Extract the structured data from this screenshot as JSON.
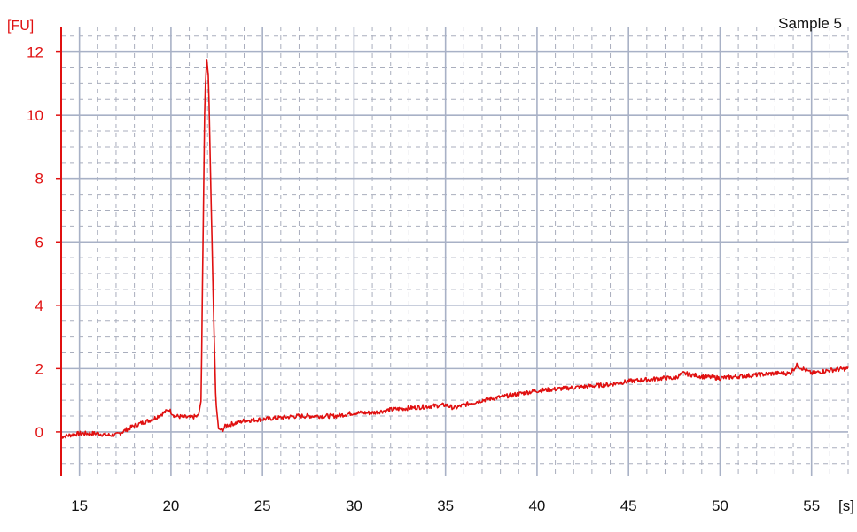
{
  "sample_label": "Sample 5",
  "colors": {
    "trace": "#e01010",
    "axis": "#e01010",
    "grid_major": "#a8b1c6",
    "grid_minor": "#a9aebd",
    "plot_bg": "#ffffff"
  },
  "chart_data": {
    "type": "line",
    "title": "Sample 5",
    "xlabel": "[s]",
    "ylabel": "[FU]",
    "xlim": [
      14,
      57
    ],
    "ylim": [
      -1.4,
      12.8
    ],
    "x_ticks": [
      15,
      20,
      25,
      30,
      35,
      40,
      45,
      50,
      55
    ],
    "x_tick_labels": [
      "15",
      "20",
      "25",
      "30",
      "35",
      "40",
      "45",
      "50",
      "55"
    ],
    "y_ticks": [
      0,
      2,
      4,
      6,
      8,
      10,
      12
    ],
    "y_tick_labels": [
      "0",
      "2",
      "4",
      "6",
      "8",
      "10",
      "12"
    ],
    "grid": true,
    "series": [
      {
        "color": "#e01010",
        "x": [
          14.0,
          15.0,
          16.0,
          16.5,
          17.0,
          18.0,
          19.0,
          19.9,
          20.2,
          21.0,
          21.5,
          21.65,
          21.75,
          21.85,
          21.95,
          22.05,
          22.15,
          22.3,
          22.45,
          22.6,
          22.8,
          23.0,
          24.0,
          25.0,
          26.0,
          27.0,
          28.0,
          29.0,
          30.0,
          31.0,
          32.0,
          33.0,
          34.0,
          35.0,
          35.5,
          36.0,
          37.0,
          38.0,
          39.0,
          40.0,
          41.0,
          42.0,
          43.0,
          44.0,
          45.0,
          46.0,
          47.0,
          47.5,
          48.0,
          49.0,
          50.0,
          51.0,
          52.0,
          53.0,
          53.8,
          54.2,
          55.0,
          56.0,
          57.0
        ],
        "y": [
          -0.15,
          -0.05,
          -0.05,
          -0.1,
          -0.1,
          0.2,
          0.4,
          0.7,
          0.5,
          0.45,
          0.5,
          1.0,
          6.0,
          10.5,
          11.8,
          11.2,
          8.5,
          4.5,
          1.0,
          0.1,
          0.05,
          0.2,
          0.35,
          0.4,
          0.45,
          0.5,
          0.5,
          0.5,
          0.6,
          0.6,
          0.7,
          0.75,
          0.8,
          0.85,
          0.75,
          0.85,
          1.0,
          1.1,
          1.2,
          1.3,
          1.35,
          1.4,
          1.45,
          1.5,
          1.6,
          1.65,
          1.7,
          1.7,
          1.85,
          1.75,
          1.7,
          1.75,
          1.8,
          1.85,
          1.85,
          2.1,
          1.85,
          1.95,
          2.0
        ]
      }
    ]
  }
}
